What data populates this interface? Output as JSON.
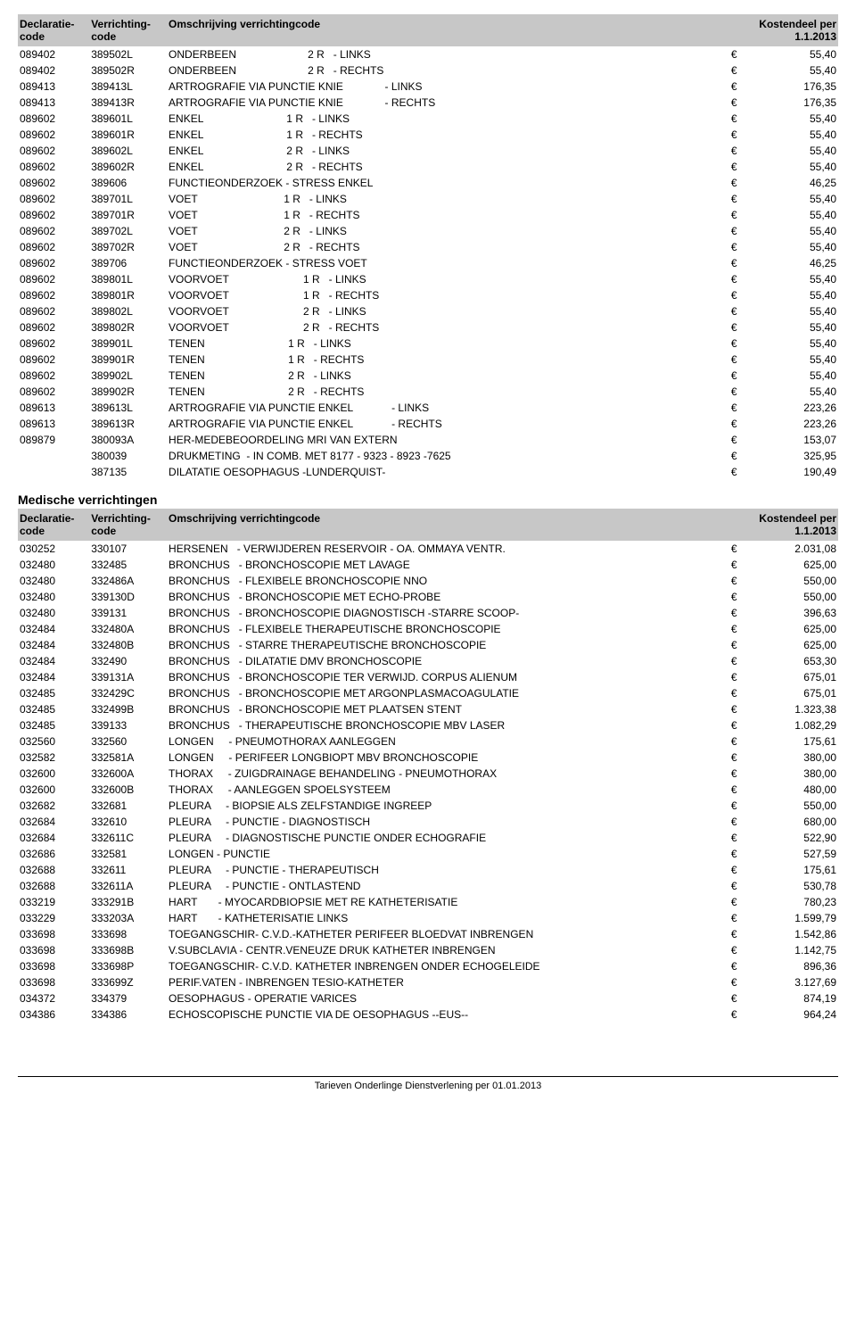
{
  "header": {
    "col1_l1": "Declaratie-",
    "col1_l2": "code",
    "col2_l1": "Verrichting-",
    "col2_l2": "code",
    "col3": "Omschrijving verrichtingcode",
    "col4": "Kostendeel per 1.1.2013"
  },
  "section2_title": "Medische verrichtingen",
  "footer": "Tarieven Onderlinge Dienstverlening per 01.01.2013",
  "euro": "€",
  "table1": [
    {
      "d": "089402",
      "v": "389502L",
      "desc": "ONDERBEEN                        2 R   - LINKS",
      "c": "55,40"
    },
    {
      "d": "089402",
      "v": "389502R",
      "desc": "ONDERBEEN                        2 R   - RECHTS",
      "c": "55,40"
    },
    {
      "d": "089413",
      "v": "389413L",
      "desc": "ARTROGRAFIE VIA PUNCTIE KNIE              - LINKS",
      "c": "176,35"
    },
    {
      "d": "089413",
      "v": "389413R",
      "desc": "ARTROGRAFIE VIA PUNCTIE KNIE              - RECHTS",
      "c": "176,35"
    },
    {
      "d": "089602",
      "v": "389601L",
      "desc": "ENKEL                            1 R   - LINKS",
      "c": "55,40"
    },
    {
      "d": "089602",
      "v": "389601R",
      "desc": "ENKEL                            1 R   - RECHTS",
      "c": "55,40"
    },
    {
      "d": "089602",
      "v": "389602L",
      "desc": "ENKEL                            2 R   - LINKS",
      "c": "55,40"
    },
    {
      "d": "089602",
      "v": "389602R",
      "desc": "ENKEL                            2 R   - RECHTS",
      "c": "55,40"
    },
    {
      "d": "089602",
      "v": "389606",
      "desc": "FUNCTIEONDERZOEK - STRESS ENKEL",
      "c": "46,25"
    },
    {
      "d": "089602",
      "v": "389701L",
      "desc": "VOET                             1 R   - LINKS",
      "c": "55,40"
    },
    {
      "d": "089602",
      "v": "389701R",
      "desc": "VOET                             1 R   - RECHTS",
      "c": "55,40"
    },
    {
      "d": "089602",
      "v": "389702L",
      "desc": "VOET                             2 R   - LINKS",
      "c": "55,40"
    },
    {
      "d": "089602",
      "v": "389702R",
      "desc": "VOET                             2 R   - RECHTS",
      "c": "55,40"
    },
    {
      "d": "089602",
      "v": "389706",
      "desc": "FUNCTIEONDERZOEK - STRESS VOET",
      "c": "46,25"
    },
    {
      "d": "089602",
      "v": "389801L",
      "desc": "VOORVOET                         1 R   - LINKS",
      "c": "55,40"
    },
    {
      "d": "089602",
      "v": "389801R",
      "desc": "VOORVOET                         1 R   - RECHTS",
      "c": "55,40"
    },
    {
      "d": "089602",
      "v": "389802L",
      "desc": "VOORVOET                         2 R   - LINKS",
      "c": "55,40"
    },
    {
      "d": "089602",
      "v": "389802R",
      "desc": "VOORVOET                         2 R   - RECHTS",
      "c": "55,40"
    },
    {
      "d": "089602",
      "v": "389901L",
      "desc": "TENEN                            1 R   - LINKS",
      "c": "55,40"
    },
    {
      "d": "089602",
      "v": "389901R",
      "desc": "TENEN                            1 R   - RECHTS",
      "c": "55,40"
    },
    {
      "d": "089602",
      "v": "389902L",
      "desc": "TENEN                            2 R   - LINKS",
      "c": "55,40"
    },
    {
      "d": "089602",
      "v": "389902R",
      "desc": "TENEN                            2 R   - RECHTS",
      "c": "55,40"
    },
    {
      "d": "089613",
      "v": "389613L",
      "desc": "ARTROGRAFIE VIA PUNCTIE ENKEL             - LINKS",
      "c": "223,26"
    },
    {
      "d": "089613",
      "v": "389613R",
      "desc": "ARTROGRAFIE VIA PUNCTIE ENKEL             - RECHTS",
      "c": "223,26"
    },
    {
      "d": "089879",
      "v": "380093A",
      "desc": "HER-MEDEBEOORDELING MRI VAN EXTERN",
      "c": "153,07"
    },
    {
      "d": "",
      "v": "380039",
      "desc": "DRUKMETING  - IN COMB. MET 8177 - 9323 - 8923 -7625",
      "c": "325,95"
    },
    {
      "d": "",
      "v": "387135",
      "desc": "DILATATIE OESOPHAGUS -LUNDERQUIST-",
      "c": "190,49"
    }
  ],
  "table2": [
    {
      "d": "030252",
      "v": "330107",
      "desc": "HERSENEN   - VERWIJDEREN RESERVOIR - OA. OMMAYA VENTR.",
      "c": "2.031,08"
    },
    {
      "d": "032480",
      "v": "332485",
      "desc": "BRONCHUS   - BRONCHOSCOPIE MET LAVAGE",
      "c": "625,00"
    },
    {
      "d": "032480",
      "v": "332486A",
      "desc": "BRONCHUS   - FLEXIBELE BRONCHOSCOPIE NNO",
      "c": "550,00"
    },
    {
      "d": "032480",
      "v": "339130D",
      "desc": "BRONCHUS   - BRONCHOSCOPIE MET ECHO-PROBE",
      "c": "550,00"
    },
    {
      "d": "032480",
      "v": "339131",
      "desc": "BRONCHUS   - BRONCHOSCOPIE DIAGNOSTISCH -STARRE SCOOP-",
      "c": "396,63"
    },
    {
      "d": "032484",
      "v": "332480A",
      "desc": "BRONCHUS   - FLEXIBELE THERAPEUTISCHE BRONCHOSCOPIE",
      "c": "625,00"
    },
    {
      "d": "032484",
      "v": "332480B",
      "desc": "BRONCHUS   - STARRE THERAPEUTISCHE BRONCHOSCOPIE",
      "c": "625,00"
    },
    {
      "d": "032484",
      "v": "332490",
      "desc": "BRONCHUS   - DILATATIE DMV BRONCHOSCOPIE",
      "c": "653,30"
    },
    {
      "d": "032484",
      "v": "339131A",
      "desc": "BRONCHUS   - BRONCHOSCOPIE TER VERWIJD. CORPUS ALIENUM",
      "c": "675,01"
    },
    {
      "d": "032485",
      "v": "332429C",
      "desc": "BRONCHUS   - BRONCHOSCOPIE MET ARGONPLASMACOAGULATIE",
      "c": "675,01"
    },
    {
      "d": "032485",
      "v": "332499B",
      "desc": "BRONCHUS   - BRONCHOSCOPIE MET PLAATSEN STENT",
      "c": "1.323,38"
    },
    {
      "d": "032485",
      "v": "339133",
      "desc": "BRONCHUS   - THERAPEUTISCHE BRONCHOSCOPIE MBV LASER",
      "c": "1.082,29"
    },
    {
      "d": "032560",
      "v": "332560",
      "desc": "LONGEN     - PNEUMOTHORAX AANLEGGEN",
      "c": "175,61"
    },
    {
      "d": "032582",
      "v": "332581A",
      "desc": "LONGEN     - PERIFEER LONGBIOPT MBV BRONCHOSCOPIE",
      "c": "380,00"
    },
    {
      "d": "032600",
      "v": "332600A",
      "desc": "THORAX     - ZUIGDRAINAGE BEHANDELING - PNEUMOTHORAX",
      "c": "380,00"
    },
    {
      "d": "032600",
      "v": "332600B",
      "desc": "THORAX     - AANLEGGEN SPOELSYSTEEM",
      "c": "480,00"
    },
    {
      "d": "032682",
      "v": "332681",
      "desc": "PLEURA     - BIOPSIE ALS ZELFSTANDIGE INGREEP",
      "c": "550,00"
    },
    {
      "d": "032684",
      "v": "332610",
      "desc": "PLEURA     - PUNCTIE - DIAGNOSTISCH",
      "c": "680,00"
    },
    {
      "d": "032684",
      "v": "332611C",
      "desc": "PLEURA     - DIAGNOSTISCHE PUNCTIE ONDER ECHOGRAFIE",
      "c": "522,90"
    },
    {
      "d": "032686",
      "v": "332581",
      "desc": "LONGEN - PUNCTIE",
      "c": "527,59"
    },
    {
      "d": "032688",
      "v": "332611",
      "desc": "PLEURA     - PUNCTIE - THERAPEUTISCH",
      "c": "175,61"
    },
    {
      "d": "032688",
      "v": "332611A",
      "desc": "PLEURA     - PUNCTIE - ONTLASTEND",
      "c": "530,78"
    },
    {
      "d": "033219",
      "v": "333291B",
      "desc": "HART       - MYOCARDBIOPSIE MET RE KATHETERISATIE",
      "c": "780,23"
    },
    {
      "d": "033229",
      "v": "333203A",
      "desc": "HART       - KATHETERISATIE LINKS",
      "c": "1.599,79"
    },
    {
      "d": "033698",
      "v": "333698",
      "desc": "TOEGANGSCHIR- C.V.D.-KATHETER PERIFEER BLOEDVAT INBRENGEN",
      "c": "1.542,86"
    },
    {
      "d": "033698",
      "v": "333698B",
      "desc": "V.SUBCLAVIA - CENTR.VENEUZE DRUK KATHETER INBRENGEN",
      "c": "1.142,75"
    },
    {
      "d": "033698",
      "v": "333698P",
      "desc": "TOEGANGSCHIR- C.V.D. KATHETER INBRENGEN ONDER ECHOGELEIDE",
      "c": "896,36"
    },
    {
      "d": "033698",
      "v": "333699Z",
      "desc": "PERIF.VATEN - INBRENGEN TESIO-KATHETER",
      "c": "3.127,69"
    },
    {
      "d": "034372",
      "v": "334379",
      "desc": "OESOPHAGUS - OPERATIE VARICES",
      "c": "874,19"
    },
    {
      "d": "034386",
      "v": "334386",
      "desc": "ECHOSCOPISCHE PUNCTIE VIA DE OESOPHAGUS --EUS--",
      "c": "964,24"
    }
  ]
}
